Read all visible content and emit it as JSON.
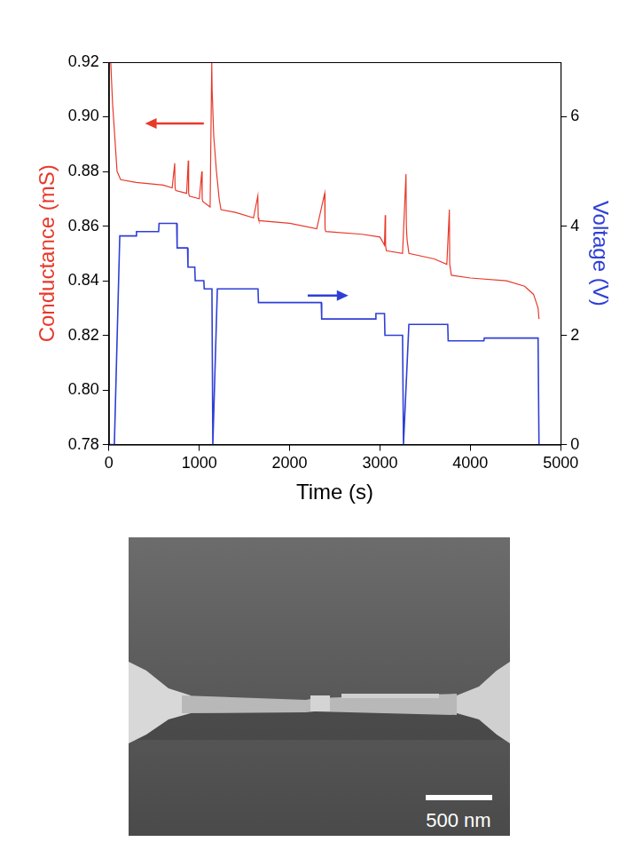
{
  "chart_data": {
    "type": "line",
    "xlabel": "Time (s)",
    "ylabel": "Conductance (mS)",
    "y2label": "Voltage (V)",
    "xlim": [
      0,
      5000
    ],
    "xticks": [
      0,
      1000,
      2000,
      3000,
      4000,
      5000
    ],
    "ylim": [
      0.78,
      0.92
    ],
    "yticks": [
      0.78,
      {
        "value": 0.8,
        "label": "0.80"
      },
      0.82,
      0.84,
      0.86,
      0.88,
      {
        "value": 0.9,
        "label": "0.90"
      },
      0.92
    ],
    "y2lim": [
      0,
      7
    ],
    "y2ticks": [
      0,
      2,
      4,
      6
    ],
    "grid": false,
    "series": [
      {
        "color": "#e8392b",
        "axis": "y",
        "x": [
          20,
          40,
          60,
          90,
          130,
          300,
          600,
          700,
          728,
          732,
          740,
          860,
          878,
          882,
          890,
          1000,
          1028,
          1032,
          1040,
          1120,
          1138,
          1142,
          1160,
          1190,
          1220,
          1240,
          1400,
          1600,
          1648,
          1652,
          1660,
          2000,
          2300,
          2388,
          2392,
          2400,
          2800,
          3000,
          3050,
          3058,
          3062,
          3070,
          3250,
          3288,
          3292,
          3300,
          3320,
          3600,
          3740,
          3768,
          3772,
          3790,
          4000,
          4400,
          4600,
          4700,
          4750,
          4760
        ],
        "values": [
          0.92,
          0.905,
          0.895,
          0.88,
          0.877,
          0.876,
          0.875,
          0.874,
          0.883,
          0.874,
          0.873,
          0.872,
          0.884,
          0.872,
          0.871,
          0.87,
          0.88,
          0.87,
          0.869,
          0.867,
          0.92,
          0.91,
          0.893,
          0.88,
          0.87,
          0.866,
          0.865,
          0.863,
          0.871,
          0.863,
          0.862,
          0.861,
          0.859,
          0.872,
          0.859,
          0.858,
          0.857,
          0.856,
          0.853,
          0.864,
          0.853,
          0.851,
          0.85,
          0.879,
          0.86,
          0.855,
          0.85,
          0.848,
          0.846,
          0.866,
          0.846,
          0.842,
          0.841,
          0.84,
          0.838,
          0.835,
          0.83,
          0.826
        ]
      },
      {
        "color": "#2f3fd6",
        "axis": "y2",
        "x": [
          0,
          60,
          120,
          300,
          305,
          550,
          555,
          750,
          755,
          870,
          875,
          950,
          955,
          1050,
          1055,
          1140,
          1150,
          1200,
          1650,
          1655,
          2350,
          2355,
          2950,
          2955,
          3050,
          3055,
          3250,
          3260,
          3320,
          3750,
          3755,
          4150,
          4155,
          4750,
          4760
        ],
        "values": [
          0,
          0,
          3.82,
          3.82,
          3.9,
          3.9,
          4.05,
          4.05,
          3.6,
          3.6,
          3.25,
          3.25,
          3.0,
          3.0,
          2.85,
          2.85,
          0,
          2.85,
          2.85,
          2.6,
          2.6,
          2.3,
          2.3,
          2.4,
          2.4,
          2.0,
          2.0,
          0,
          2.2,
          2.2,
          1.9,
          1.9,
          1.95,
          1.95,
          0
        ]
      }
    ]
  },
  "image": {
    "scale_bar": "500 nm"
  }
}
